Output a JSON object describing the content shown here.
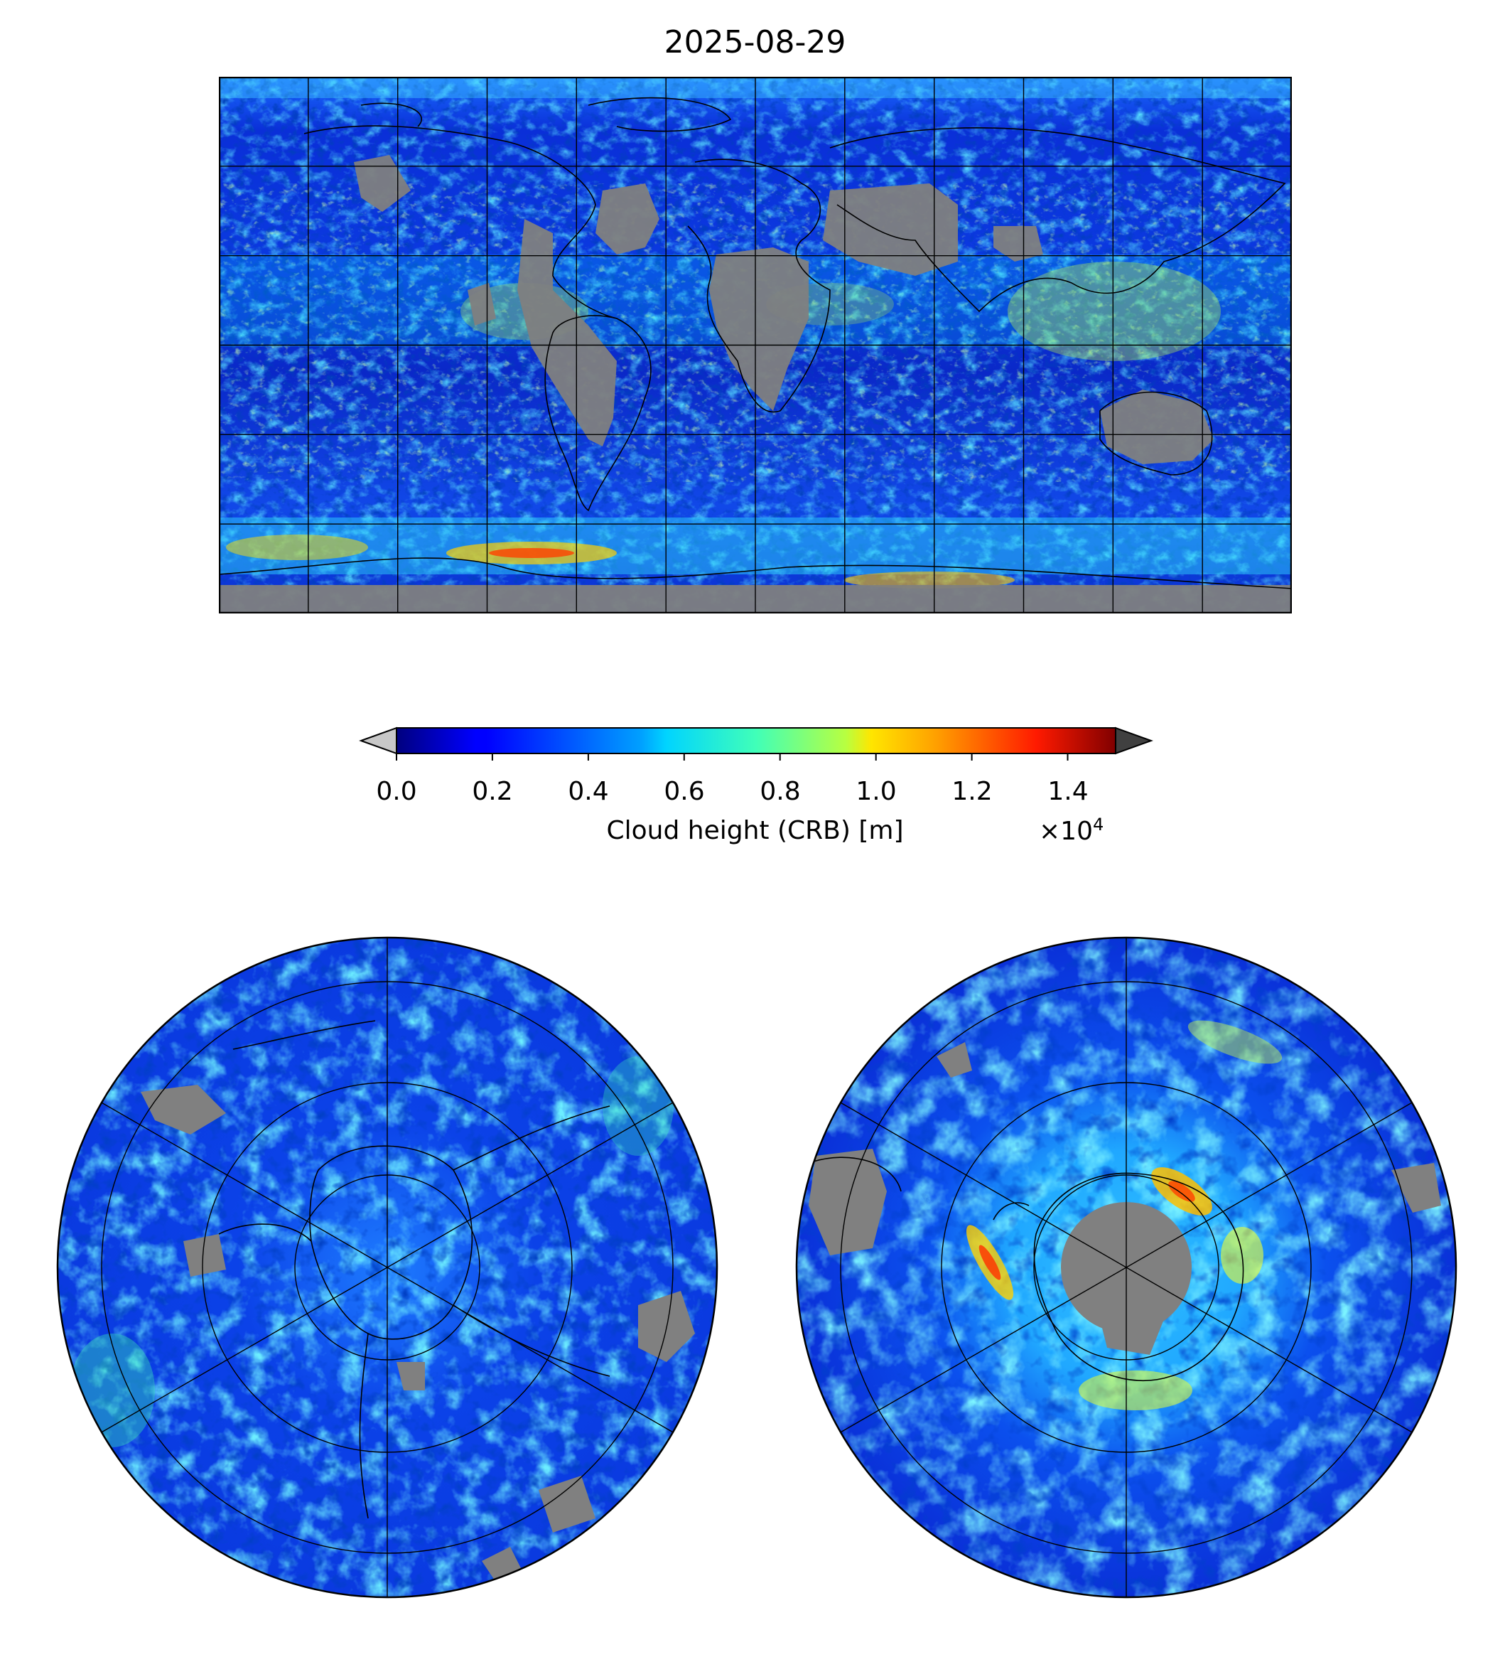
{
  "figure": {
    "title": "2025-08-29"
  },
  "colorbar": {
    "label": "Cloud height (CRB) [m]",
    "multiplier_base": "×10",
    "multiplier_exp": "4",
    "ticks": [
      "0.0",
      "0.2",
      "0.4",
      "0.6",
      "0.8",
      "1.0",
      "1.2",
      "1.4"
    ],
    "colormap": "jet",
    "range": [
      0,
      1.5
    ],
    "under_color": "#c8c8c8",
    "over_color": "#404040",
    "missing_color": "#808080"
  },
  "panels": [
    {
      "name": "global-map",
      "projection": "equirectangular",
      "extent_lon": [
        -180,
        180
      ],
      "extent_lat": [
        -90,
        90
      ]
    },
    {
      "name": "north-polar-map",
      "projection": "north-polar-stereographic"
    },
    {
      "name": "south-polar-map",
      "projection": "south-polar-stereographic"
    }
  ]
}
